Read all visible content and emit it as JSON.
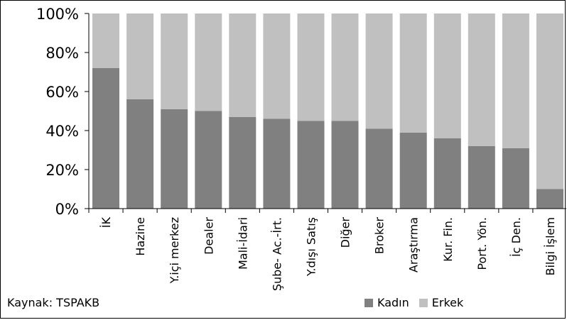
{
  "chart_data": {
    "type": "bar",
    "stacked": true,
    "categories": [
      "İK",
      "Hazine",
      "Y.içi merkez",
      "Dealer",
      "Mali-İdari",
      "Şube- Ac.-İrt.",
      "Y.dışı Satış",
      "Diğer",
      "Broker",
      "Araştırma",
      "Kur. Fin.",
      "Port. Yön.",
      "İç Den.",
      "Bilgi İşlem"
    ],
    "series": [
      {
        "name": "Kadın",
        "color": "#808080",
        "values": [
          72,
          56,
          51,
          50,
          47,
          46,
          45,
          45,
          41,
          39,
          36,
          32,
          31,
          10
        ]
      },
      {
        "name": "Erkek",
        "color": "#c0c0c0",
        "values": [
          28,
          44,
          49,
          50,
          53,
          54,
          55,
          55,
          59,
          61,
          64,
          68,
          69,
          90
        ]
      }
    ],
    "yticks": [
      "0%",
      "20%",
      "40%",
      "60%",
      "80%",
      "100%"
    ],
    "ylim": [
      0,
      100
    ],
    "legend_position": "bottom-right",
    "grid": false,
    "source": "Kaynak: TSPAKB"
  }
}
